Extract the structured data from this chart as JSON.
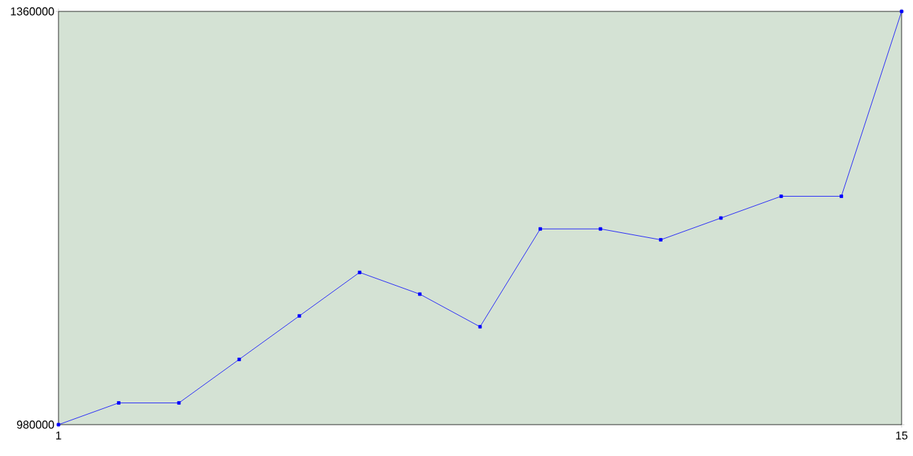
{
  "chart_data": {
    "type": "line",
    "x": [
      1,
      2,
      3,
      4,
      5,
      6,
      7,
      8,
      9,
      10,
      11,
      12,
      13,
      14,
      15
    ],
    "series": [
      {
        "color": "#0000ff",
        "values": [
          980000,
          1000000,
          1000000,
          1040000,
          1080000,
          1120000,
          1100000,
          1070000,
          1160000,
          1160000,
          1150000,
          1170000,
          1190000,
          1190000,
          1360000
        ]
      }
    ],
    "xlim": [
      1,
      15
    ],
    "ylim": [
      980000,
      1360000
    ],
    "xticks": [
      1,
      15
    ],
    "yticks": [
      980000,
      1360000
    ],
    "marker": "square",
    "line_style": "solid"
  }
}
